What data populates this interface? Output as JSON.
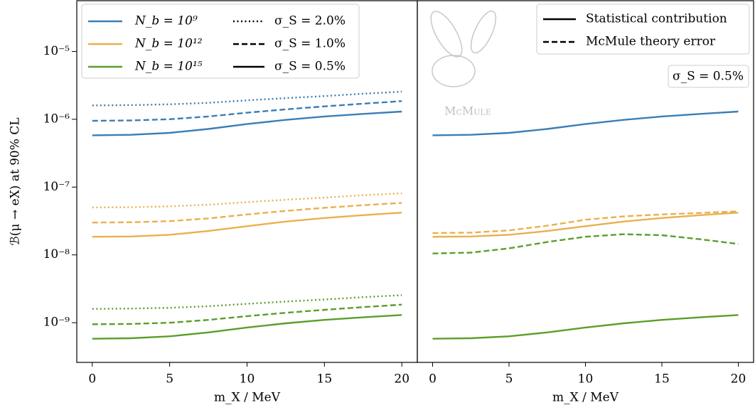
{
  "chart_data": [
    {
      "type": "line",
      "ylabel": "ℬ(μ → eX) at 90% CL",
      "xlabel": "m_X / MeV",
      "log_y": true,
      "xlim": [
        -1,
        21
      ],
      "ylim": [
        2.6e-10,
        5.6e-05
      ],
      "xticks": [
        0,
        5,
        10,
        15,
        20
      ],
      "yticks": [
        {
          "value": 1e-09,
          "label": "10⁻⁹"
        },
        {
          "value": 1e-08,
          "label": "10⁻⁸"
        },
        {
          "value": 1e-07,
          "label": "10⁻⁷"
        },
        {
          "value": 1e-06,
          "label": "10⁻⁶"
        },
        {
          "value": 1e-05,
          "label": "10⁻⁵"
        }
      ],
      "x": [
        0,
        2.5,
        5,
        7.5,
        10,
        12.5,
        15,
        17.5,
        20
      ],
      "legend_colors": [
        {
          "label": "N_b = 10⁹",
          "color": "#3b7eb6"
        },
        {
          "label": "N_b = 10¹²",
          "color": "#e9b04e"
        },
        {
          "label": "N_b = 10¹⁵",
          "color": "#5b9e2b"
        }
      ],
      "legend_styles": [
        {
          "label": "σ_S = 2.0%",
          "style": "dotted"
        },
        {
          "label": "σ_S = 1.0%",
          "style": "dashed"
        },
        {
          "label": "σ_S = 0.5%",
          "style": "solid"
        }
      ],
      "series": [
        {
          "color": "#3b7eb6",
          "style": "solid",
          "values": [
            5.8e-07,
            5.9e-07,
            6.3e-07,
            7.2e-07,
            8.5e-07,
            9.8e-07,
            1.1e-06,
            1.2e-06,
            1.3e-06
          ]
        },
        {
          "color": "#3b7eb6",
          "style": "dashed",
          "values": [
            9.5e-07,
            9.6e-07,
            1e-06,
            1.1e-06,
            1.25e-06,
            1.4e-06,
            1.55e-06,
            1.7e-06,
            1.85e-06
          ]
        },
        {
          "color": "#3b7eb6",
          "style": "dotted",
          "values": [
            1.6e-06,
            1.62e-06,
            1.66e-06,
            1.75e-06,
            1.9e-06,
            2.05e-06,
            2.2e-06,
            2.38e-06,
            2.55e-06
          ]
        },
        {
          "color": "#e9b04e",
          "style": "solid",
          "values": [
            1.85e-08,
            1.87e-08,
            1.98e-08,
            2.25e-08,
            2.65e-08,
            3.1e-08,
            3.5e-08,
            3.85e-08,
            4.2e-08
          ]
        },
        {
          "color": "#e9b04e",
          "style": "dashed",
          "values": [
            3e-08,
            3.03e-08,
            3.15e-08,
            3.45e-08,
            3.95e-08,
            4.45e-08,
            4.95e-08,
            5.4e-08,
            5.85e-08
          ]
        },
        {
          "color": "#e9b04e",
          "style": "dotted",
          "values": [
            5e-08,
            5.05e-08,
            5.2e-08,
            5.5e-08,
            6e-08,
            6.5e-08,
            7e-08,
            7.6e-08,
            8.1e-08
          ]
        },
        {
          "color": "#5b9e2b",
          "style": "solid",
          "values": [
            5.8e-10,
            5.9e-10,
            6.3e-10,
            7.2e-10,
            8.5e-10,
            9.8e-10,
            1.1e-09,
            1.2e-09,
            1.3e-09
          ]
        },
        {
          "color": "#5b9e2b",
          "style": "dashed",
          "values": [
            9.5e-10,
            9.6e-10,
            1e-09,
            1.1e-09,
            1.25e-09,
            1.4e-09,
            1.55e-09,
            1.7e-09,
            1.85e-09
          ]
        },
        {
          "color": "#5b9e2b",
          "style": "dotted",
          "values": [
            1.6e-09,
            1.62e-09,
            1.66e-09,
            1.75e-09,
            1.9e-09,
            2.05e-09,
            2.2e-09,
            2.38e-09,
            2.55e-09
          ]
        }
      ]
    },
    {
      "type": "line",
      "xlabel": "m_X / MeV",
      "log_y": true,
      "xlim": [
        -1,
        21
      ],
      "ylim": [
        2.6e-10,
        5.6e-05
      ],
      "xticks": [
        0,
        5,
        10,
        15,
        20
      ],
      "x": [
        0,
        2.5,
        5,
        7.5,
        10,
        12.5,
        15,
        17.5,
        20
      ],
      "legend_styles": [
        {
          "label": "Statistical contribution",
          "style": "solid"
        },
        {
          "label": "McMule theory error",
          "style": "dashed"
        }
      ],
      "annotation": "σ_S = 0.5%",
      "logo_text": "McMule",
      "series": [
        {
          "color": "#3b7eb6",
          "style": "solid",
          "values": [
            5.8e-07,
            5.9e-07,
            6.3e-07,
            7.2e-07,
            8.5e-07,
            9.8e-07,
            1.1e-06,
            1.2e-06,
            1.3e-06
          ]
        },
        {
          "color": "#e9b04e",
          "style": "dashed",
          "values": [
            2.1e-08,
            2.13e-08,
            2.3e-08,
            2.7e-08,
            3.3e-08,
            3.7e-08,
            3.95e-08,
            4.15e-08,
            4.4e-08
          ]
        },
        {
          "color": "#e9b04e",
          "style": "solid",
          "values": [
            1.85e-08,
            1.87e-08,
            1.98e-08,
            2.25e-08,
            2.65e-08,
            3.1e-08,
            3.5e-08,
            3.85e-08,
            4.2e-08
          ]
        },
        {
          "color": "#5b9e2b",
          "style": "dashed",
          "values": [
            1.05e-08,
            1.08e-08,
            1.25e-08,
            1.55e-08,
            1.85e-08,
            2.02e-08,
            1.95e-08,
            1.7e-08,
            1.45e-08
          ]
        },
        {
          "color": "#5b9e2b",
          "style": "solid",
          "values": [
            5.8e-10,
            5.9e-10,
            6.3e-10,
            7.2e-10,
            8.5e-10,
            9.8e-10,
            1.1e-09,
            1.2e-09,
            1.3e-09
          ]
        }
      ]
    }
  ]
}
